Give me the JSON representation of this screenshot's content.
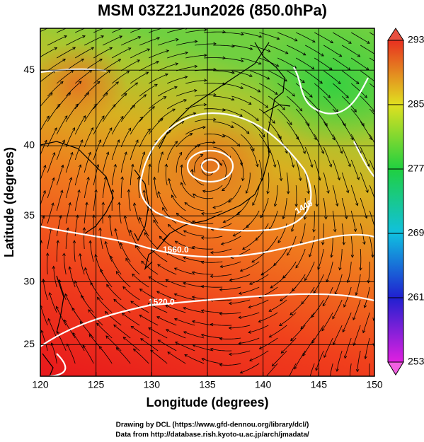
{
  "chart_data": {
    "type": "map",
    "title": "MSM 03Z21Jun2026 (850.0hPa)",
    "x_label": "Longitude (degrees)",
    "y_label": "Latitude  (degrees)",
    "projection": "mercator",
    "xlim": [
      120,
      150
    ],
    "xticks": [
      120,
      125,
      130,
      135,
      140,
      145,
      150
    ],
    "ylim": [
      22.4,
      47.6
    ],
    "yticks": [
      25,
      30,
      35,
      40,
      45
    ],
    "grid": true,
    "colorbar": {
      "lim": [
        253,
        293
      ],
      "ticks": [
        253,
        261,
        269,
        277,
        285,
        293
      ]
    },
    "contour_labels": [
      "1560.0",
      "1520.0",
      "1440"
    ],
    "credits": [
      "Drawing by DCL (https://www.gfd-dennou.org/library/dcl/)",
      "Data from http://database.rish.kyoto-u.ac.jp/arch/jmadata/"
    ]
  }
}
